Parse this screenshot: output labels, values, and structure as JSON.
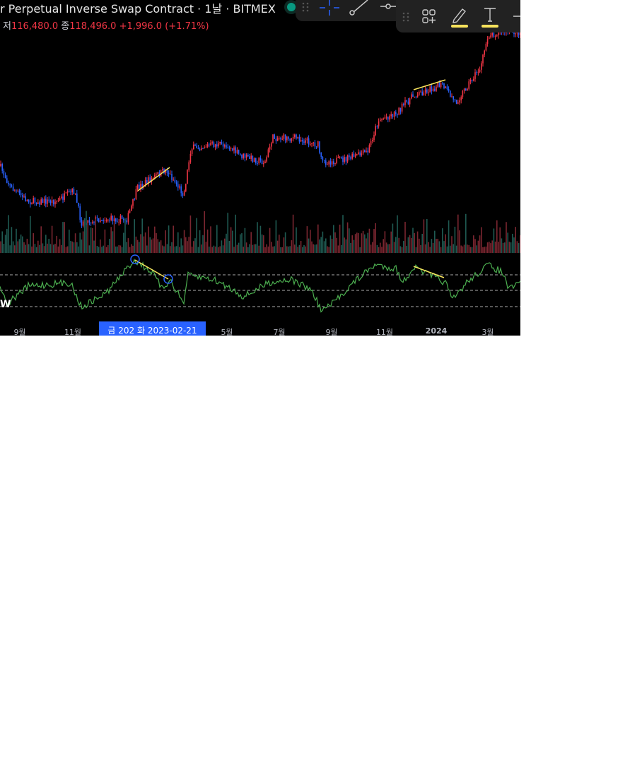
{
  "header": {
    "title": "r Perpetual Inverse Swap Contract · 1날 · BITMEX",
    "low_label": "저",
    "low": "116,480.0",
    "close_label": "종",
    "close": "118,496.0",
    "change": "+1,996.0 (+1.71%)",
    "status_color": "#089981"
  },
  "toolbar": {
    "tools": [
      "drag-handle-icon",
      "crosshair-icon",
      "trend-line-icon",
      "horizontal-ray-icon"
    ],
    "tools2": [
      "drag-handle-icon",
      "add-widget-icon",
      "pencil-icon",
      "text-icon",
      "minus-icon"
    ],
    "highlight_color": "#f7e35c"
  },
  "indicator": {
    "label": "W"
  },
  "chart_data": {
    "type": "candlestick",
    "x_ticks": [
      "9월",
      "11월",
      "5월",
      "7월",
      "9월",
      "11월",
      "2024",
      "3월"
    ],
    "crosshair_label": "금 202  화 2023-02-21",
    "up_color": "#f23645",
    "down_color": "#2962ff",
    "rsi_color": "#4caf50",
    "drawing_color": "#f7e35c"
  }
}
